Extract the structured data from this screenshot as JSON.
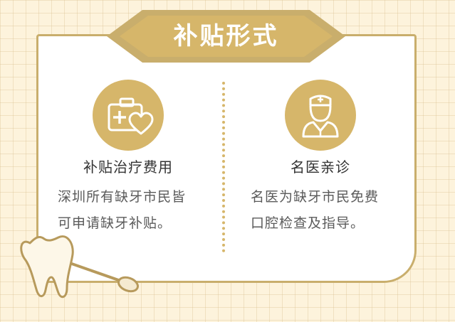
{
  "banner": {
    "title": "补贴形式"
  },
  "left": {
    "icon": "medical-kit-heart-icon",
    "heading": "补贴治疗费用",
    "desc_lines": [
      "深圳所有缺牙市民皆",
      "可申请缺牙补贴。"
    ]
  },
  "right": {
    "icon": "doctor-icon",
    "heading": "名医亲诊",
    "desc_lines": [
      "名医为缺牙市民免费",
      "口腔检查及指导。"
    ]
  },
  "decoration": {
    "icon": "tooth-mirror-icon"
  },
  "colors": {
    "background": "#fdf3dc",
    "gold": "#d6b66a",
    "border": "#c9ae6c",
    "text_dark": "#333333",
    "text_body": "#5a5a5a"
  }
}
